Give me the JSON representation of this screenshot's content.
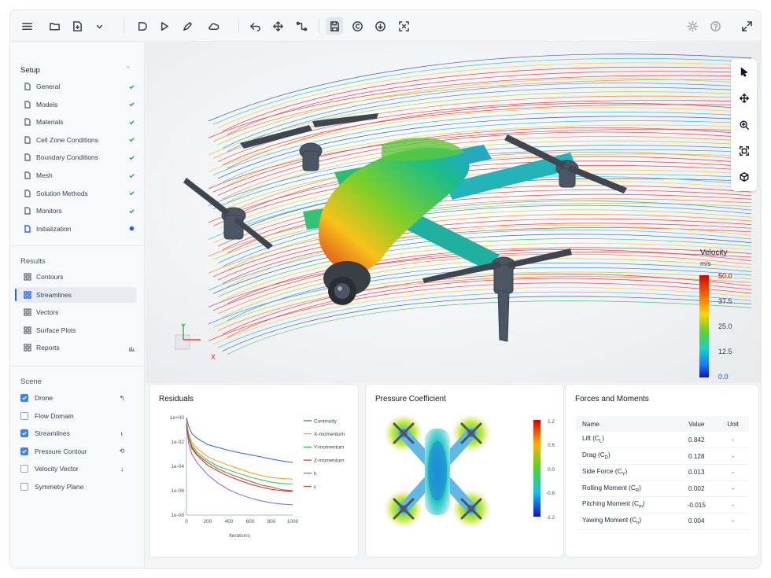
{
  "toolbar": {
    "icons": [
      "menu-icon",
      "folder-icon",
      "new-file-icon",
      "chevron-down-icon",
      "shape-icon",
      "play-icon",
      "edit-icon",
      "cloud-icon",
      "undo-icon",
      "move-icon",
      "path-icon",
      "save-icon",
      "copyright-icon",
      "download-icon",
      "fit-icon",
      "settings-icon",
      "help-icon",
      "fullscreen-icon"
    ]
  },
  "setup": {
    "title": "Setup",
    "items": [
      {
        "label": "General",
        "status": "done"
      },
      {
        "label": "Models",
        "status": "done"
      },
      {
        "label": "Materials",
        "status": "done"
      },
      {
        "label": "Cell Zone Conditions",
        "status": "done"
      },
      {
        "label": "Boundary Conditions",
        "status": "done"
      },
      {
        "label": "Mesh",
        "status": "done"
      },
      {
        "label": "Solution Methods",
        "status": "done"
      },
      {
        "label": "Monitors",
        "status": "done"
      },
      {
        "label": "Initialization",
        "status": "active"
      }
    ]
  },
  "results": {
    "title": "Results",
    "items": [
      {
        "label": "Contours"
      },
      {
        "label": "Streamlines",
        "selected": true
      },
      {
        "label": "Vectors"
      },
      {
        "label": "Surface Plots"
      },
      {
        "label": "Reports"
      }
    ]
  },
  "scene": {
    "title": "Scene",
    "items": [
      {
        "label": "Drone",
        "checked": true
      },
      {
        "label": "Flow Domain",
        "checked": false
      },
      {
        "label": "Streamlines",
        "checked": true
      },
      {
        "label": "Pressure Contour",
        "checked": true
      },
      {
        "label": "Velocity Vector",
        "checked": false
      },
      {
        "label": "Symmetry Plane",
        "checked": false
      }
    ]
  },
  "viewport": {
    "legend": {
      "title": "Velocity",
      "unit": "m/s",
      "ticks": [
        "50.0",
        "37.5",
        "25.0",
        "12.5",
        "0.0"
      ]
    },
    "axes": {
      "y": "Y",
      "x": "X"
    },
    "tools": [
      "pointer-icon",
      "move-icon",
      "zoom-icon",
      "frame-icon",
      "cube-icon"
    ]
  },
  "residuals": {
    "title": "Residuals",
    "y_ticks": [
      "1e+00",
      "1e-02",
      "1e-04",
      "1e-06",
      "1e-08"
    ],
    "x_ticks": [
      "0",
      "200",
      "400",
      "600",
      "800",
      "1000"
    ],
    "xlabel": "Iterations",
    "chart_data": {
      "type": "line",
      "x": [
        0,
        20,
        50,
        100,
        200,
        300,
        400,
        500,
        600,
        700,
        800,
        900,
        1000
      ],
      "ylog": true,
      "ylim": [
        1e-08,
        1
      ],
      "xlim": [
        0,
        1000
      ],
      "series": [
        {
          "name": "Continuity",
          "color": "#2563eb",
          "values": [
            1,
            0.2,
            0.05,
            0.02,
            0.006,
            0.0035,
            0.002,
            0.0013,
            0.0009,
            0.0006,
            0.0004,
            0.00028,
            0.0002
          ]
        },
        {
          "name": "X-momentum",
          "color": "#f59e0b",
          "values": [
            0.5,
            0.05,
            0.01,
            0.003,
            0.0006,
            0.00025,
            0.00012,
            6e-05,
            3e-05,
            1.8e-05,
            1.2e-05,
            1e-05,
            9e-06
          ]
        },
        {
          "name": "Y-momentum",
          "color": "#22c55e",
          "values": [
            0.4,
            0.03,
            0.006,
            0.0015,
            0.0003,
            0.0001,
            5e-05,
            2.5e-05,
            1.3e-05,
            8e-06,
            5e-06,
            4e-06,
            3.5e-06
          ]
        },
        {
          "name": "Z-momentum",
          "color": "#dc2626",
          "values": [
            0.3,
            0.02,
            0.003,
            0.0008,
            0.00012,
            4e-05,
            1.5e-05,
            7e-06,
            3.5e-06,
            2e-06,
            1.3e-06,
            1e-06,
            9e-07
          ]
        },
        {
          "name": "k",
          "color": "#8b5cf6",
          "values": [
            0.2,
            0.008,
            0.001,
            0.0002,
            2e-05,
            4e-06,
            1.2e-06,
            5e-07,
            2.5e-07,
            1.5e-07,
            1e-07,
            8e-08,
            7e-08
          ]
        },
        {
          "name": "ε",
          "color": "#b45309",
          "values": [
            0.3,
            0.02,
            0.004,
            0.001,
            0.0002,
            6e-05,
            2.5e-05,
            1.2e-05,
            6e-06,
            3e-06,
            2e-06,
            1.2e-06,
            1e-06
          ]
        }
      ]
    }
  },
  "pressure": {
    "title": "Pressure Coefficient",
    "ticks": [
      "1.2",
      "0.6",
      "0.0",
      "-0.6",
      "-1.2"
    ]
  },
  "forces": {
    "title": "Forces and Moments",
    "headers": [
      "Name",
      "Value",
      "Unit"
    ],
    "rows": [
      {
        "name": "Lift (C",
        "sub": "L",
        "close": ")",
        "value": "0.842",
        "unit": "-"
      },
      {
        "name": "Drag (C",
        "sub": "D",
        "close": ")",
        "value": "0.128",
        "unit": "-"
      },
      {
        "name": "Side Force (C",
        "sub": "Y",
        "close": ")",
        "value": "0.013",
        "unit": "-"
      },
      {
        "name": "Rolling Moment (C",
        "sub": "R",
        "close": ")",
        "value": "0.002",
        "unit": "-"
      },
      {
        "name": "Pitching Moment (C",
        "sub": "m",
        "close": ")",
        "value": "-0.015",
        "unit": "-"
      },
      {
        "name": "Yawing Moment (C",
        "sub": "n",
        "close": ")",
        "value": "0.004",
        "unit": "-"
      }
    ]
  }
}
